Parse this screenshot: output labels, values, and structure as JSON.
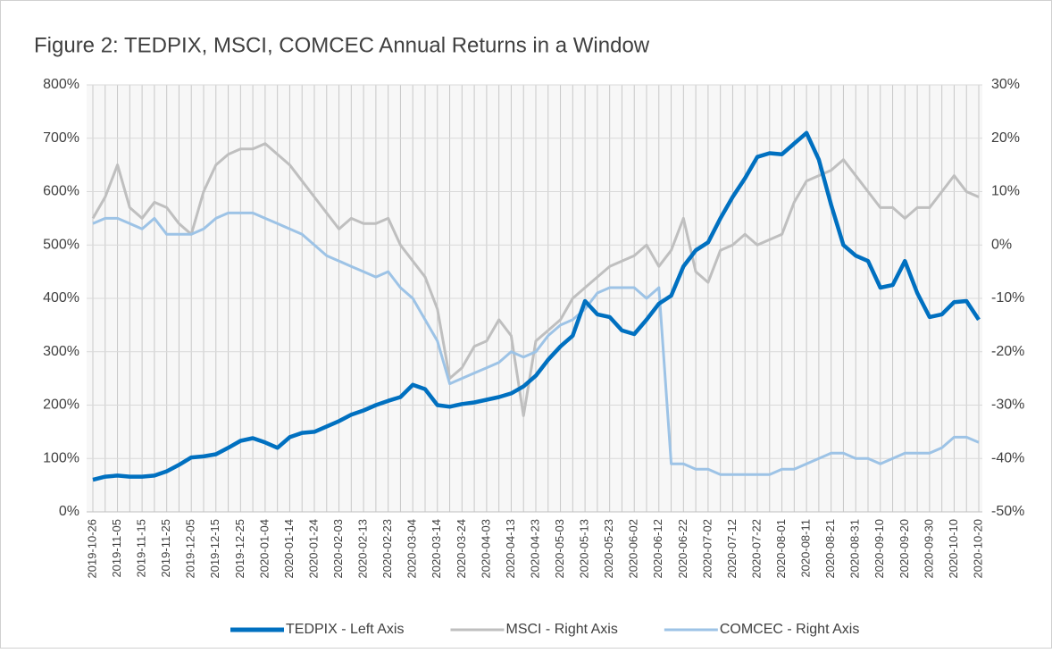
{
  "chart_data": {
    "type": "line",
    "title": "Figure 2: TEDPIX, MSCI, COMCEC Annual Returns in a Window",
    "x": [
      "2019-10-26",
      "2019-10-31",
      "2019-11-05",
      "2019-11-10",
      "2019-11-15",
      "2019-11-20",
      "2019-11-25",
      "2019-11-30",
      "2019-12-05",
      "2019-12-10",
      "2019-12-15",
      "2019-12-20",
      "2019-12-25",
      "2019-12-30",
      "2020-01-04",
      "2020-01-09",
      "2020-01-14",
      "2020-01-19",
      "2020-01-24",
      "2020-01-29",
      "2020-02-03",
      "2020-02-08",
      "2020-02-13",
      "2020-02-18",
      "2020-02-23",
      "2020-02-28",
      "2020-03-04",
      "2020-03-09",
      "2020-03-14",
      "2020-03-19",
      "2020-03-24",
      "2020-03-29",
      "2020-04-03",
      "2020-04-08",
      "2020-04-13",
      "2020-04-18",
      "2020-04-23",
      "2020-04-28",
      "2020-05-03",
      "2020-05-08",
      "2020-05-13",
      "2020-05-18",
      "2020-05-23",
      "2020-05-28",
      "2020-06-02",
      "2020-06-07",
      "2020-06-12",
      "2020-06-17",
      "2020-06-22",
      "2020-06-27",
      "2020-07-02",
      "2020-07-07",
      "2020-07-12",
      "2020-07-17",
      "2020-07-22",
      "2020-07-27",
      "2020-08-01",
      "2020-08-06",
      "2020-08-11",
      "2020-08-16",
      "2020-08-21",
      "2020-08-26",
      "2020-08-31",
      "2020-09-05",
      "2020-09-10",
      "2020-09-15",
      "2020-09-20",
      "2020-09-25",
      "2020-09-30",
      "2020-10-05",
      "2020-10-10",
      "2020-10-15",
      "2020-10-20"
    ],
    "series": [
      {
        "name": "TEDPIX - Left Axis",
        "color": "#0070c0",
        "axis": "y",
        "values": [
          60,
          66,
          68,
          66,
          66,
          68,
          76,
          88,
          102,
          104,
          108,
          120,
          133,
          138,
          130,
          120,
          140,
          148,
          150,
          160,
          170,
          182,
          190,
          200,
          208,
          215,
          238,
          230,
          200,
          197,
          202,
          205,
          210,
          215,
          222,
          235,
          255,
          285,
          310,
          330,
          395,
          370,
          365,
          340,
          333,
          360,
          390,
          405,
          460,
          490,
          505,
          550,
          590,
          625,
          665,
          672,
          670,
          690,
          710,
          660,
          575,
          500,
          480,
          470,
          420,
          425,
          470,
          410,
          365,
          370,
          393,
          395,
          360
        ]
      },
      {
        "name": "MSCI - Right Axis",
        "color": "#bfbfbf",
        "axis": "y2",
        "values": [
          5,
          9,
          15,
          7,
          5,
          8,
          7,
          4,
          2,
          10,
          15,
          17,
          18,
          18,
          19,
          17,
          15,
          12,
          9,
          6,
          3,
          5,
          4,
          4,
          5,
          0,
          -3,
          -6,
          -12,
          -25,
          -23,
          -19,
          -18,
          -14,
          -17,
          -32,
          -18,
          -16,
          -14,
          -10,
          -8,
          -6,
          -4,
          -3,
          -2,
          0,
          -4,
          -1,
          5,
          -5,
          -7,
          -1,
          0,
          2,
          0,
          1,
          2,
          8,
          12,
          13,
          14,
          16,
          13,
          10,
          7,
          7,
          5,
          7,
          7,
          10,
          13,
          10,
          9
        ]
      },
      {
        "name": "COMCEC - Right Axis",
        "color": "#9dc3e6",
        "axis": "y2",
        "values": [
          4,
          5,
          5,
          4,
          3,
          5,
          2,
          2,
          2,
          3,
          5,
          6,
          6,
          6,
          5,
          4,
          3,
          2,
          0,
          -2,
          -3,
          -4,
          -5,
          -6,
          -5,
          -8,
          -10,
          -14,
          -18,
          -26,
          -25,
          -24,
          -23,
          -22,
          -20,
          -21,
          -20,
          -17,
          -15,
          -14,
          -12,
          -9,
          -8,
          -8,
          -8,
          -10,
          -8,
          -41,
          -41,
          -42,
          -42,
          -43,
          -43,
          -43,
          -43,
          -43,
          -42,
          -42,
          -41,
          -40,
          -39,
          -39,
          -40,
          -40,
          -41,
          -40,
          -39,
          -39,
          -39,
          -38,
          -36,
          -36,
          -37
        ]
      }
    ],
    "ylim": [
      0,
      800
    ],
    "yticks": [
      {
        "value": 0,
        "label": "0%"
      },
      {
        "value": 100,
        "label": "100%"
      },
      {
        "value": 200,
        "label": "200%"
      },
      {
        "value": 300,
        "label": "300%"
      },
      {
        "value": 400,
        "label": "400%"
      },
      {
        "value": 500,
        "label": "500%"
      },
      {
        "value": 600,
        "label": "600%"
      },
      {
        "value": 700,
        "label": "700%"
      },
      {
        "value": 800,
        "label": "800%"
      }
    ],
    "y2lim": [
      -50,
      30
    ],
    "y2ticks": [
      {
        "value": -50,
        "label": "-50%"
      },
      {
        "value": -40,
        "label": "-40%"
      },
      {
        "value": -30,
        "label": "-30%"
      },
      {
        "value": -20,
        "label": "-20%"
      },
      {
        "value": -10,
        "label": "-10%"
      },
      {
        "value": 0,
        "label": "0%"
      },
      {
        "value": 10,
        "label": "10%"
      },
      {
        "value": 20,
        "label": "20%"
      },
      {
        "value": 30,
        "label": "30%"
      }
    ],
    "grid": true,
    "legend": "bottom"
  }
}
